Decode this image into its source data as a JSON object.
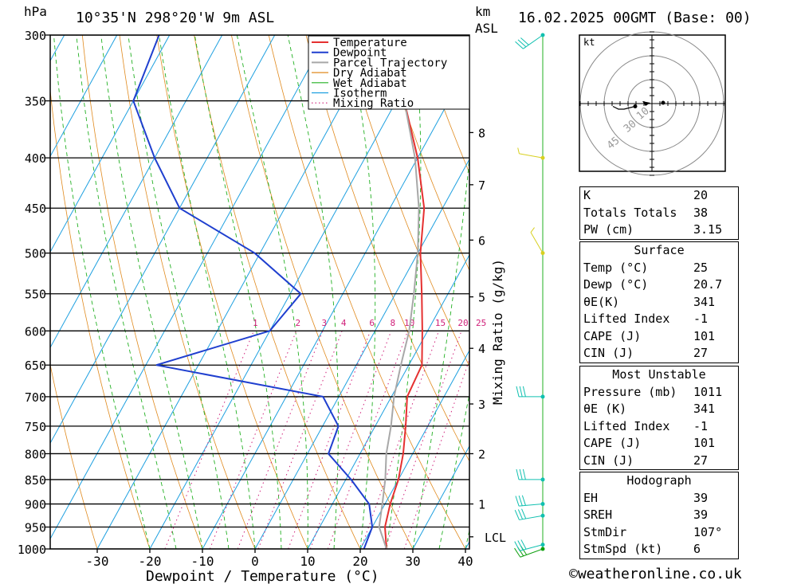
{
  "header": {
    "pressure_unit": "hPa",
    "location": "10°35'N  298°20'W  9m  ASL",
    "height_unit": "km",
    "height_ref": "ASL",
    "date": "16.02.2025  00GMT  (Base: 00)"
  },
  "chart_data": {
    "type": "line",
    "subtype": "skew-T log-P sounding",
    "xlabel": "Dewpoint / Temperature (°C)",
    "ylabel_left": "hPa",
    "ylabel_right": "Mixing Ratio (g/kg)",
    "xlim": [
      -40,
      40
    ],
    "ylim": [
      1000,
      300
    ],
    "x_ticks": [
      "-30",
      "-20",
      "-10",
      "0",
      "10",
      "20",
      "30",
      "40"
    ],
    "pressure_ticks": [
      "300",
      "350",
      "400",
      "450",
      "500",
      "550",
      "600",
      "650",
      "700",
      "750",
      "800",
      "850",
      "900",
      "950",
      "1000"
    ],
    "km_ticks": [
      {
        "label": "8",
        "p": 377
      },
      {
        "label": "7",
        "p": 426
      },
      {
        "label": "6",
        "p": 485
      },
      {
        "label": "5",
        "p": 554
      },
      {
        "label": "4",
        "p": 625
      },
      {
        "label": "3",
        "p": 712
      },
      {
        "label": "2",
        "p": 800
      },
      {
        "label": "1",
        "p": 900
      }
    ],
    "lcl": {
      "label": "LCL",
      "p": 972
    },
    "mixing_ratio_labels": [
      "1",
      "2",
      "3",
      "4",
      "6",
      "8",
      "10",
      "15",
      "20",
      "25"
    ],
    "legend": [
      "Temperature",
      "Dewpoint",
      "Parcel Trajectory",
      "Dry Adiabat",
      "Wet Adiabat",
      "Isotherm",
      "Mixing Ratio"
    ],
    "legend_position": "top-right",
    "colors": {
      "temperature": "#e53030",
      "dewpoint": "#1f3fcf",
      "parcel": "#a8a8a8",
      "dry_adiabat": "#e08a1e",
      "wet_adiabat": "#22b022",
      "isotherm": "#1ea0e0",
      "mixing_ratio": "#d0207a"
    },
    "series": [
      {
        "name": "Temperature",
        "points": [
          [
            1000,
            25.0
          ],
          [
            950,
            22.4
          ],
          [
            900,
            21.0
          ],
          [
            850,
            20.0
          ],
          [
            800,
            18.2
          ],
          [
            750,
            15.8
          ],
          [
            700,
            13.0
          ],
          [
            650,
            12.5
          ],
          [
            600,
            9.0
          ],
          [
            550,
            5.0
          ],
          [
            500,
            0.5
          ],
          [
            450,
            -3.5
          ],
          [
            400,
            -10.0
          ],
          [
            350,
            -18.5
          ],
          [
            300,
            -27.0
          ]
        ]
      },
      {
        "name": "Dewpoint",
        "points": [
          [
            1000,
            20.7
          ],
          [
            950,
            20.0
          ],
          [
            900,
            17.0
          ],
          [
            850,
            11.0
          ],
          [
            800,
            4.0
          ],
          [
            750,
            3.0
          ],
          [
            700,
            -3.0
          ],
          [
            650,
            -38.0
          ],
          [
            600,
            -20.0
          ],
          [
            550,
            -18.0
          ],
          [
            500,
            -31.0
          ],
          [
            450,
            -50.0
          ],
          [
            400,
            -60.0
          ],
          [
            350,
            -70.0
          ],
          [
            300,
            -72.0
          ]
        ]
      },
      {
        "name": "Parcel Trajectory",
        "points": [
          [
            1000,
            25.0
          ],
          [
            950,
            21.3
          ],
          [
            900,
            19.5
          ],
          [
            850,
            17.5
          ],
          [
            800,
            15.0
          ],
          [
            750,
            13.0
          ],
          [
            700,
            10.5
          ],
          [
            650,
            8.5
          ],
          [
            600,
            6.5
          ],
          [
            550,
            3.5
          ],
          [
            500,
            0.0
          ],
          [
            450,
            -4.5
          ],
          [
            400,
            -10.5
          ],
          [
            350,
            -18.5
          ],
          [
            300,
            -28.0
          ]
        ]
      }
    ]
  },
  "wind_profile": [
    {
      "p": 1000,
      "dir": 250,
      "kt": 15
    },
    {
      "p": 990,
      "dir": 255,
      "kt": 15
    },
    {
      "p": 925,
      "dir": 260,
      "kt": 15
    },
    {
      "p": 900,
      "dir": 265,
      "kt": 15
    },
    {
      "p": 850,
      "dir": 270,
      "kt": 15
    },
    {
      "p": 700,
      "dir": 270,
      "kt": 15
    },
    {
      "p": 500,
      "dir": 330,
      "kt": 5
    },
    {
      "p": 400,
      "dir": 280,
      "kt": 5
    },
    {
      "p": 300,
      "dir": 235,
      "kt": 15
    }
  ],
  "hodograph": {
    "unit": "kt",
    "ring_labels": [
      "10",
      "30",
      "45"
    ],
    "points": [
      [
        -6,
        -1
      ],
      [
        -10,
        -2
      ],
      [
        -12,
        -2
      ],
      [
        -14,
        -1
      ]
    ]
  },
  "indices": [
    {
      "label": "K",
      "value": "20"
    },
    {
      "label": "Totals Totals",
      "value": "38"
    },
    {
      "label": "PW (cm)",
      "value": "3.15"
    }
  ],
  "surface": {
    "title": "Surface",
    "rows": [
      {
        "label": "Temp (°C)",
        "value": "25"
      },
      {
        "label": "Dewp (°C)",
        "value": "20.7"
      },
      {
        "label": "θE(K)",
        "value": "341"
      },
      {
        "label": "Lifted Index",
        "value": "-1"
      },
      {
        "label": "CAPE (J)",
        "value": "101"
      },
      {
        "label": "CIN (J)",
        "value": "27"
      }
    ]
  },
  "most_unstable": {
    "title": "Most Unstable",
    "rows": [
      {
        "label": "Pressure (mb)",
        "value": "1011"
      },
      {
        "label": "θE (K)",
        "value": "341"
      },
      {
        "label": "Lifted Index",
        "value": "-1"
      },
      {
        "label": "CAPE (J)",
        "value": "101"
      },
      {
        "label": "CIN (J)",
        "value": "27"
      }
    ]
  },
  "hodograph_table": {
    "title": "Hodograph",
    "rows": [
      {
        "label": "EH",
        "value": "39"
      },
      {
        "label": "SREH",
        "value": "39"
      },
      {
        "label": "StmDir",
        "value": "107°"
      },
      {
        "label": "StmSpd (kt)",
        "value": "6"
      }
    ]
  },
  "credit": "©weatheronline.co.uk"
}
